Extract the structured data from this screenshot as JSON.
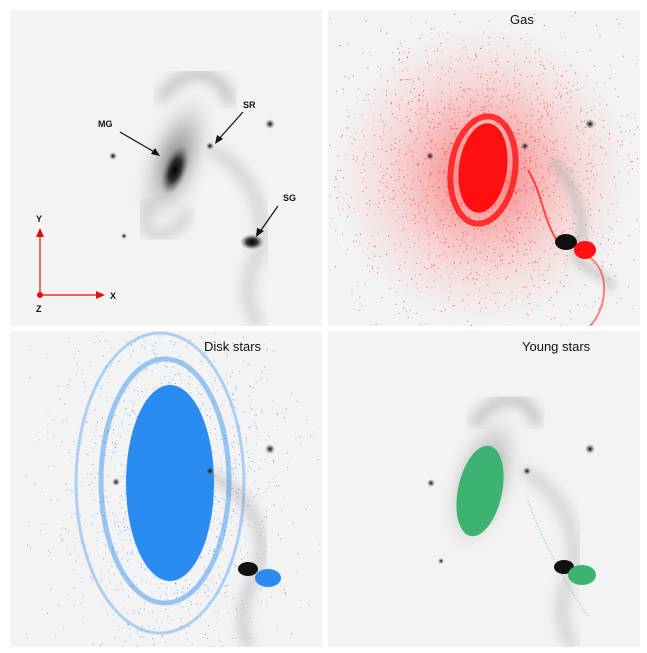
{
  "panels": {
    "top_left": {
      "title": "",
      "labels": {
        "mg": "MG",
        "sr": "SR",
        "sg": "SG"
      },
      "axes": {
        "y": "Y",
        "x": "X",
        "z": "Z"
      }
    },
    "top_right": {
      "title": "Gas"
    },
    "bottom_left": {
      "title": "Disk stars"
    },
    "bottom_right": {
      "title": "Young stars"
    }
  },
  "colors": {
    "background": "#f3f3f3",
    "galaxy": "#1a1a1a",
    "gas": "#ff1010",
    "disk_stars": "#2a8cf0",
    "young_stars": "#3cb371",
    "axis_arrows": "#e01010"
  }
}
